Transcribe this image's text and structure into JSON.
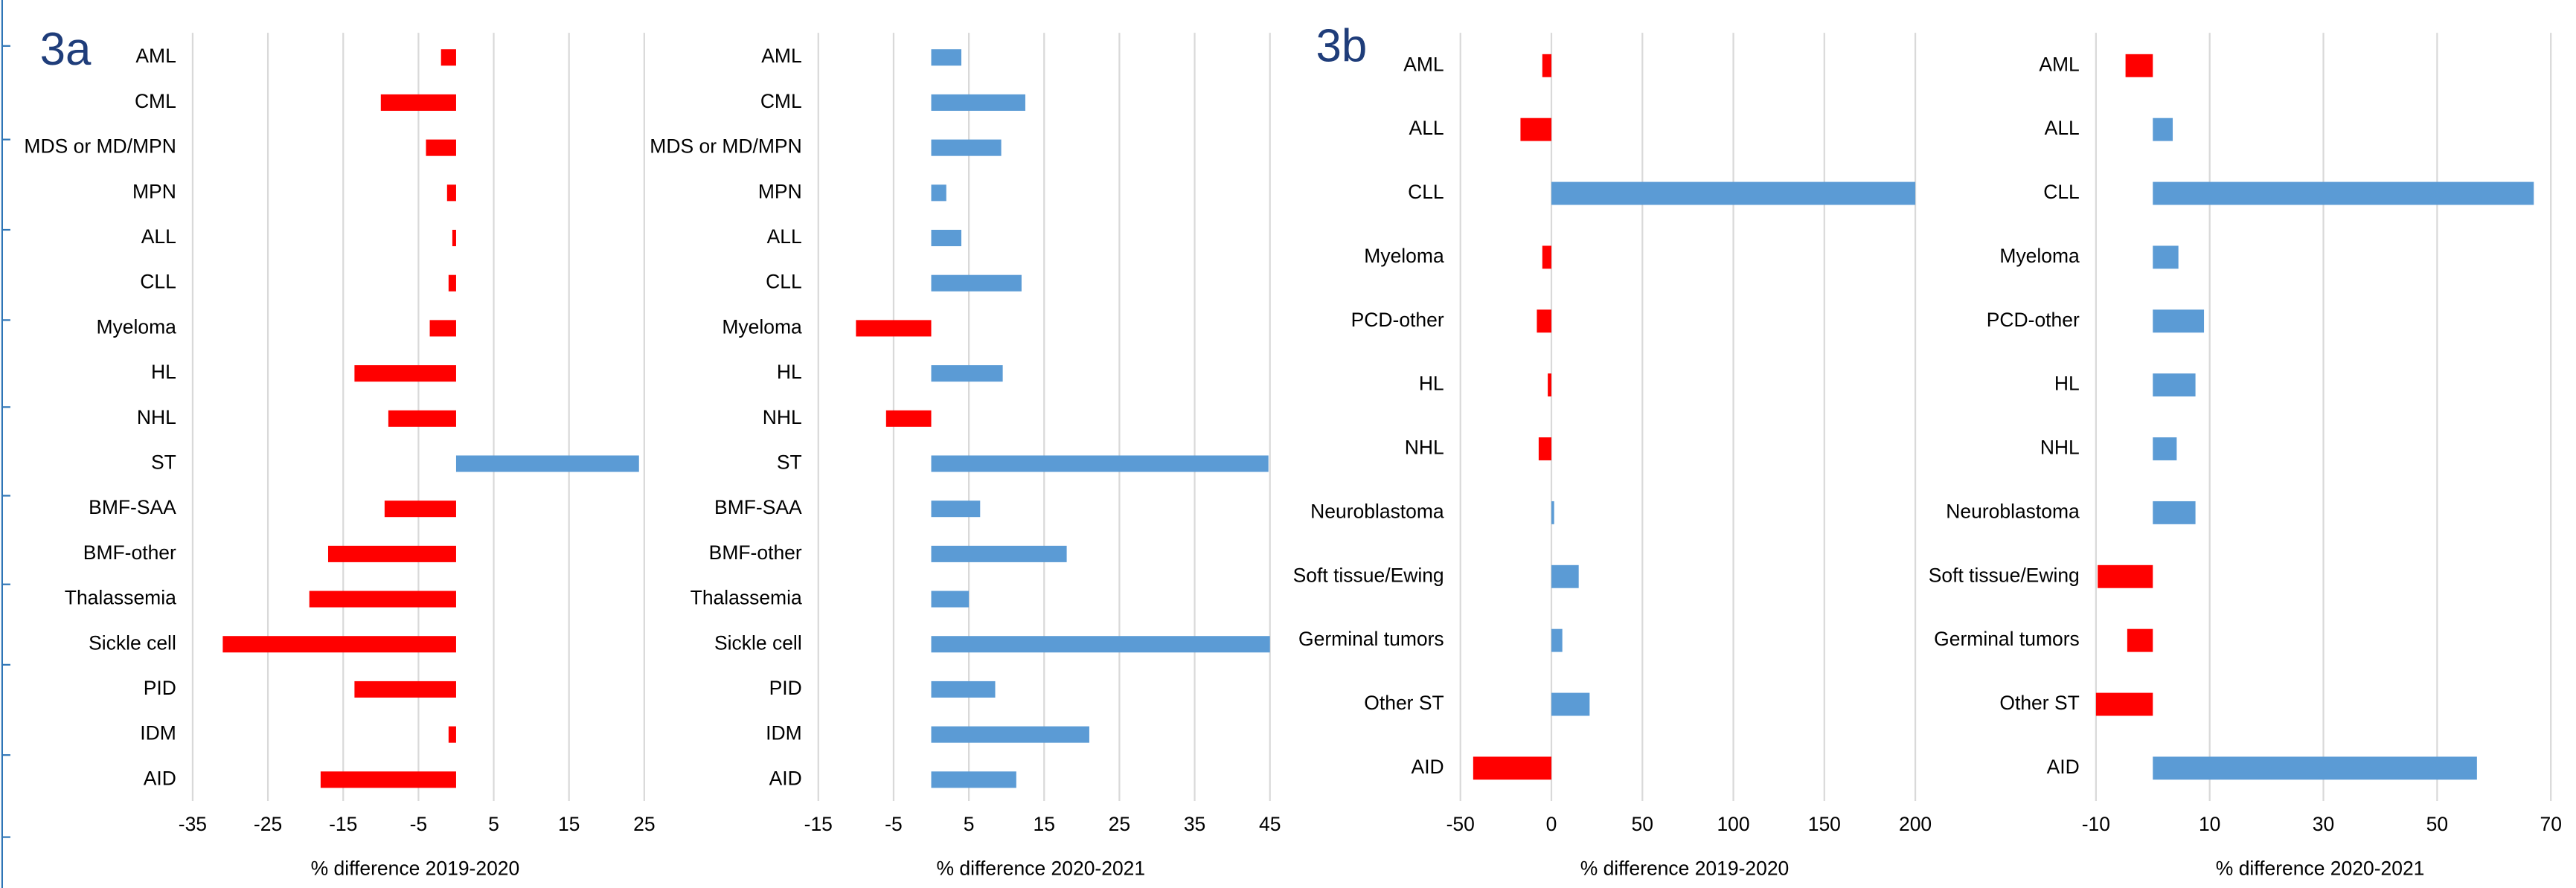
{
  "figure_labels": [
    "3a",
    "3b"
  ],
  "chart_data": [
    {
      "type": "bar",
      "orientation": "horizontal",
      "x_label": "% difference 2019-2020",
      "categories": [
        "AML",
        "CML",
        "MDS or MD/MPN",
        "MPN",
        "ALL",
        "CLL",
        "Myeloma",
        "HL",
        "NHL",
        "ST",
        "BMF-SAA",
        "BMF-other",
        "Thalassemia",
        "Sickle cell",
        "PID",
        "IDM",
        "AID"
      ],
      "values": [
        -2,
        -10,
        -4,
        -1.2,
        -0.5,
        -1,
        -3.5,
        -13.5,
        -9,
        24.3,
        -9.5,
        -17,
        -19.5,
        -31,
        -13.5,
        -1,
        -18
      ],
      "xlim": [
        -35,
        25
      ],
      "xticks": [
        -35,
        -25,
        -15,
        -5,
        5,
        15,
        25
      ],
      "grid": true,
      "color_negative": "#ff0000",
      "color_positive": "#5b9bd5"
    },
    {
      "type": "bar",
      "orientation": "horizontal",
      "x_label": "% difference 2020-2021",
      "categories": [
        "AML",
        "CML",
        "MDS or MD/MPN",
        "MPN",
        "ALL",
        "CLL",
        "Myeloma",
        "HL",
        "NHL",
        "ST",
        "BMF-SAA",
        "BMF-other",
        "Thalassemia",
        "Sickle cell",
        "PID",
        "IDM",
        "AID"
      ],
      "values": [
        4,
        12.5,
        9.3,
        2,
        4,
        12,
        -10,
        9.5,
        -6,
        44.8,
        6.5,
        18,
        5,
        45,
        8.5,
        21,
        11.3
      ],
      "xlim": [
        -15,
        45
      ],
      "xticks": [
        -15,
        -5,
        5,
        15,
        25,
        35,
        45
      ],
      "grid": true,
      "color_negative": "#ff0000",
      "color_positive": "#5b9bd5"
    },
    {
      "type": "bar",
      "orientation": "horizontal",
      "x_label": "% difference 2019-2020",
      "categories": [
        "AML",
        "ALL",
        "CLL",
        "Myeloma",
        "PCD-other",
        "HL",
        "NHL",
        "Neuroblastoma",
        "Soft tissue/Ewing",
        "Germinal tumors",
        "Other ST",
        "AID"
      ],
      "values": [
        -5,
        -17,
        200,
        -5,
        -8,
        -2,
        -7,
        1.5,
        15,
        6,
        21,
        -43
      ],
      "xlim": [
        -50,
        200
      ],
      "xticks": [
        -50,
        0,
        50,
        100,
        150,
        200
      ],
      "grid": true,
      "color_negative": "#ff0000",
      "color_positive": "#5b9bd5"
    },
    {
      "type": "bar",
      "orientation": "horizontal",
      "x_label": "% difference 2020-2021",
      "categories": [
        "AML",
        "ALL",
        "CLL",
        "Myeloma",
        "PCD-other",
        "HL",
        "NHL",
        "Neuroblastoma",
        "Soft tissue/Ewing",
        "Germinal tumors",
        "Other ST",
        "AID"
      ],
      "values": [
        -4.8,
        3.5,
        67,
        4.5,
        9,
        7.5,
        4.2,
        7.5,
        -9.7,
        -4.5,
        -10,
        57
      ],
      "xlim": [
        -10,
        70
      ],
      "xticks": [
        -10,
        10,
        30,
        50,
        70
      ],
      "grid": true,
      "color_negative": "#ff0000",
      "color_positive": "#5b9bd5"
    }
  ]
}
